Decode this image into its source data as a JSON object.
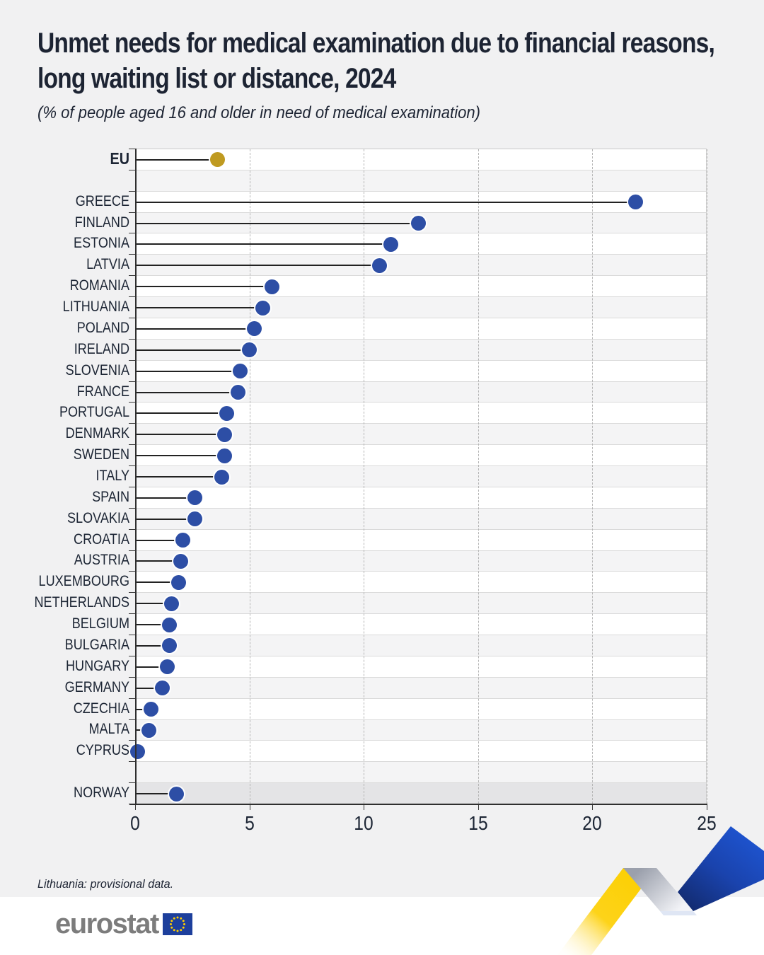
{
  "header": {
    "title_lines": [
      "Unmet needs for medical examination due to financial reasons,",
      "long waiting list or distance, 2024"
    ],
    "subtitle": "(% of people aged 16 and older in need of medical examination)"
  },
  "footnote": "Lithuania: provisional data.",
  "logo": {
    "text": "eurostat",
    "flag_icon": "eu-flag-icon"
  },
  "colors": {
    "page_background": "#f1f1f2",
    "band_white": "#ffffff",
    "band_gray": "#f4f4f5",
    "band_highlight": "#e4e4e6",
    "dot_blue": "#2d4ea5",
    "dot_gold": "#bf9a20",
    "stem": "#222222",
    "axis": "#2f2f2f",
    "text": "#1c2534",
    "logo_gray": "#7c7c7c",
    "flag_blue": "#1d3f9c",
    "flag_star": "#ffce00",
    "ribbon_yellow": "#fccf00",
    "ribbon_blue": "#1e55d2"
  },
  "chart_data": {
    "type": "bar",
    "style": "lollipop",
    "orientation": "horizontal",
    "title": "Unmet needs for medical examination due to financial reasons, long waiting list or distance, 2024",
    "subtitle": "(% of people aged 16 and older in need of medical examination)",
    "xlabel": "",
    "ylabel": "",
    "xlim": [
      0,
      25
    ],
    "x_ticks": [
      0,
      5,
      10,
      15,
      20,
      25
    ],
    "gridlines": "vertical dashed at 5, 10, 15, 20, 25",
    "legend": "none",
    "rows": [
      {
        "label": "EU",
        "value": 3.6,
        "dot_color": "gold",
        "bold": true
      },
      {
        "spacer": true
      },
      {
        "label": "GREECE",
        "value": 21.9
      },
      {
        "label": "FINLAND",
        "value": 12.4
      },
      {
        "label": "ESTONIA",
        "value": 11.2
      },
      {
        "label": "LATVIA",
        "value": 10.7
      },
      {
        "label": "ROMANIA",
        "value": 6.0
      },
      {
        "label": "LITHUANIA",
        "value": 5.6
      },
      {
        "label": "POLAND",
        "value": 5.2
      },
      {
        "label": "IRELAND",
        "value": 5.0
      },
      {
        "label": "SLOVENIA",
        "value": 4.6
      },
      {
        "label": "FRANCE",
        "value": 4.5
      },
      {
        "label": "PORTUGAL",
        "value": 4.0
      },
      {
        "label": "DENMARK",
        "value": 3.9
      },
      {
        "label": "SWEDEN",
        "value": 3.9
      },
      {
        "label": "ITALY",
        "value": 3.8
      },
      {
        "label": "SPAIN",
        "value": 2.6
      },
      {
        "label": "SLOVAKIA",
        "value": 2.6
      },
      {
        "label": "CROATIA",
        "value": 2.1
      },
      {
        "label": "AUSTRIA",
        "value": 2.0
      },
      {
        "label": "LUXEMBOURG",
        "value": 1.9
      },
      {
        "label": "NETHERLANDS",
        "value": 1.6
      },
      {
        "label": "BELGIUM",
        "value": 1.5
      },
      {
        "label": "BULGARIA",
        "value": 1.5
      },
      {
        "label": "HUNGARY",
        "value": 1.4
      },
      {
        "label": "GERMANY",
        "value": 1.2
      },
      {
        "label": "CZECHIA",
        "value": 0.7
      },
      {
        "label": "MALTA",
        "value": 0.6
      },
      {
        "label": "CYPRUS",
        "value": 0.1
      },
      {
        "spacer": true
      },
      {
        "label": "NORWAY",
        "value": 1.8,
        "highlight": true
      }
    ]
  }
}
